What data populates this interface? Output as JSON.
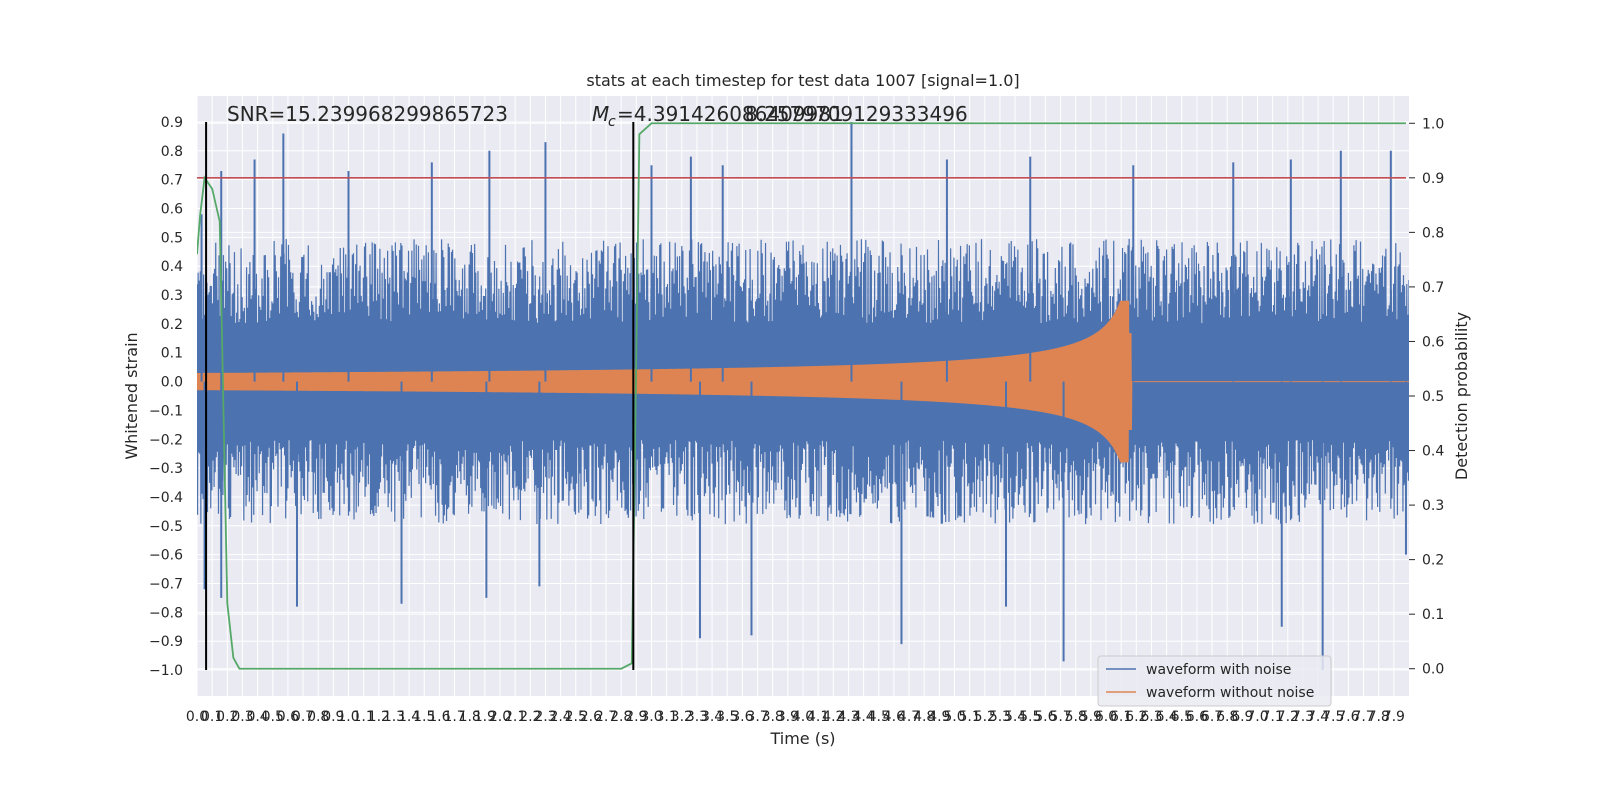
{
  "chart_data": {
    "type": "line",
    "title": "stats at each timestep for test data 1007 [signal=1.0]",
    "xlabel": "Time (s)",
    "ylabel": "Whitened strain",
    "ylabel_right": "Detection probability",
    "xlim": [
      0.0,
      8.0
    ],
    "ylim": [
      -1.09,
      0.99
    ],
    "ylim_right": [
      -0.05,
      1.05
    ],
    "x_ticks": [
      0.0,
      0.1,
      0.2,
      0.3,
      0.4,
      0.5,
      0.6,
      0.7,
      0.8,
      0.9,
      1.0,
      1.1,
      1.2,
      1.3,
      1.4,
      1.5,
      1.6,
      1.7,
      1.8,
      1.9,
      2.0,
      2.1,
      2.2,
      2.3,
      2.4,
      2.5,
      2.6,
      2.7,
      2.8,
      2.9,
      3.0,
      3.1,
      3.2,
      3.3,
      3.4,
      3.5,
      3.6,
      3.7,
      3.8,
      3.9,
      4.0,
      4.1,
      4.2,
      4.3,
      4.4,
      4.5,
      4.6,
      4.7,
      4.8,
      4.9,
      5.0,
      5.1,
      5.2,
      5.3,
      5.4,
      5.5,
      5.6,
      5.7,
      5.8,
      5.9,
      6.0,
      6.1,
      6.2,
      6.3,
      6.4,
      6.5,
      6.6,
      6.7,
      6.8,
      6.9,
      7.0,
      7.1,
      7.2,
      7.3,
      7.4,
      7.5,
      7.6,
      7.7,
      7.8,
      7.9
    ],
    "y_ticks": [
      "0.9",
      "0.8",
      "0.7",
      "0.6",
      "0.5",
      "0.4",
      "0.3",
      "0.2",
      "0.1",
      "0.0",
      "−0.1",
      "−0.2",
      "−0.3",
      "−0.4",
      "−0.5",
      "−0.6",
      "−0.7",
      "−0.8",
      "−0.9",
      "−1.0"
    ],
    "y_tick_values": [
      0.9,
      0.8,
      0.7,
      0.6,
      0.5,
      0.4,
      0.3,
      0.2,
      0.1,
      0.0,
      -0.1,
      -0.2,
      -0.3,
      -0.4,
      -0.5,
      -0.6,
      -0.7,
      -0.8,
      -0.9,
      -1.0
    ],
    "y_right_ticks": [
      "1.0",
      "0.9",
      "0.8",
      "0.7",
      "0.6",
      "0.5",
      "0.4",
      "0.3",
      "0.2",
      "0.1",
      "0.0"
    ],
    "y_right_tick_values": [
      1.0,
      0.9,
      0.8,
      0.7,
      0.6,
      0.5,
      0.4,
      0.3,
      0.2,
      0.1,
      0.0
    ],
    "threshold": 0.9,
    "vlines": [
      0.06,
      2.88
    ],
    "series": [
      {
        "name": "waveform with noise",
        "color": "#4c72b0",
        "envelope_top_typical": 0.45,
        "envelope_bottom_typical": -0.45,
        "peaks_top": [
          [
            0.03,
            0.58
          ],
          [
            0.16,
            0.73
          ],
          [
            0.38,
            0.77
          ],
          [
            0.57,
            0.86
          ],
          [
            1.0,
            0.73
          ],
          [
            1.55,
            0.76
          ],
          [
            1.93,
            0.8
          ],
          [
            2.3,
            0.83
          ],
          [
            3.0,
            0.75
          ],
          [
            3.26,
            0.78
          ],
          [
            3.47,
            0.75
          ],
          [
            4.32,
            0.9
          ],
          [
            4.95,
            0.77
          ],
          [
            5.5,
            0.78
          ],
          [
            6.18,
            0.75
          ],
          [
            6.84,
            0.76
          ],
          [
            7.22,
            0.77
          ],
          [
            7.55,
            0.8
          ],
          [
            7.88,
            0.8
          ]
        ],
        "peaks_bottom": [
          [
            0.05,
            -0.72
          ],
          [
            0.16,
            -0.75
          ],
          [
            0.66,
            -0.78
          ],
          [
            1.35,
            -0.77
          ],
          [
            1.91,
            -0.75
          ],
          [
            2.26,
            -0.71
          ],
          [
            3.32,
            -0.89
          ],
          [
            3.66,
            -0.88
          ],
          [
            4.65,
            -0.91
          ],
          [
            5.34,
            -0.78
          ],
          [
            5.72,
            -0.97
          ],
          [
            7.16,
            -0.85
          ],
          [
            7.43,
            -1.0
          ],
          [
            7.98,
            -0.6
          ]
        ]
      },
      {
        "name": "waveform without noise",
        "color": "#dd8452",
        "chirp_start": 0.0,
        "merger_time": 6.15,
        "amplitude_start": 0.03,
        "amplitude_peak": 0.28,
        "amplitude_after": 0.0
      },
      {
        "name": "detection probability",
        "color": "#55a868",
        "axis": "right",
        "x": [
          0.0,
          0.02,
          0.05,
          0.1,
          0.15,
          0.2,
          0.24,
          0.28,
          0.4,
          1.0,
          2.0,
          2.8,
          2.87,
          2.89,
          2.92,
          3.0,
          7.98
        ],
        "y": [
          0.76,
          0.83,
          0.9,
          0.88,
          0.82,
          0.12,
          0.02,
          0.0,
          0.0,
          0.0,
          0.0,
          0.0,
          0.01,
          0.38,
          0.98,
          1.0,
          1.0
        ]
      },
      {
        "name": "threshold",
        "color": "#c44e52",
        "axis": "right",
        "x": [
          0.0,
          7.98
        ],
        "y": [
          0.9,
          0.9
        ]
      }
    ],
    "annotations": [
      {
        "id": "snr",
        "text": "SNR=15.239968299865723",
        "x": 0.2,
        "y": 0.93
      },
      {
        "id": "mc-symbol",
        "text": "M",
        "x": 2.6,
        "y": 0.93
      },
      {
        "id": "mc-sub",
        "text": "c",
        "x": 2.69,
        "y": 0.91
      },
      {
        "id": "mc-value",
        "text": "=4.391426086409981",
        "x": 2.7,
        "y": 0.93
      },
      {
        "id": "overlap",
        "text": "8.2579709129333496",
        "x": 3.55,
        "y": 0.93
      }
    ],
    "legend": {
      "placement": "lower-right",
      "entries": [
        {
          "label": "waveform with noise",
          "color": "#4c72b0"
        },
        {
          "label": "waveform without noise",
          "color": "#dd8452"
        }
      ]
    }
  }
}
